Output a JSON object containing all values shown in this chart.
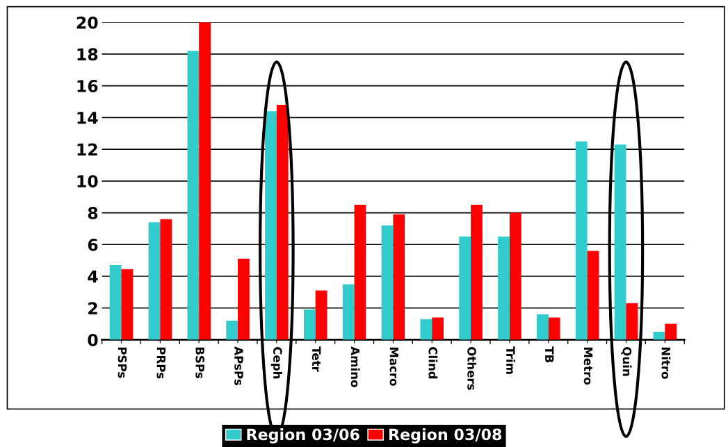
{
  "chart_data": {
    "type": "bar",
    "categories": [
      "PSPs",
      "PRPs",
      "BSPs",
      "APsPs",
      "Ceph",
      "Tetr",
      "Amino",
      "Macro",
      "Clind",
      "Others",
      "Trim",
      "TB",
      "Metro",
      "Quin",
      "Nitro"
    ],
    "series": [
      {
        "name": "Region 03/06",
        "color": "#33cccc",
        "values": [
          4.7,
          7.4,
          18.2,
          1.2,
          14.4,
          1.9,
          3.5,
          7.2,
          1.3,
          6.5,
          6.5,
          1.6,
          12.5,
          12.3,
          0.5
        ]
      },
      {
        "name": "Region 03/08",
        "color": "#ff0000",
        "values": [
          4.45,
          7.6,
          20.0,
          5.1,
          14.8,
          3.1,
          8.5,
          7.9,
          1.4,
          8.5,
          8.0,
          1.4,
          5.6,
          2.3,
          1.0
        ]
      }
    ],
    "ylim": [
      0,
      20
    ],
    "yticks": [
      0,
      2,
      4,
      6,
      8,
      10,
      12,
      14,
      16,
      18,
      20
    ],
    "grid": "y",
    "legend": "bottom"
  }
}
